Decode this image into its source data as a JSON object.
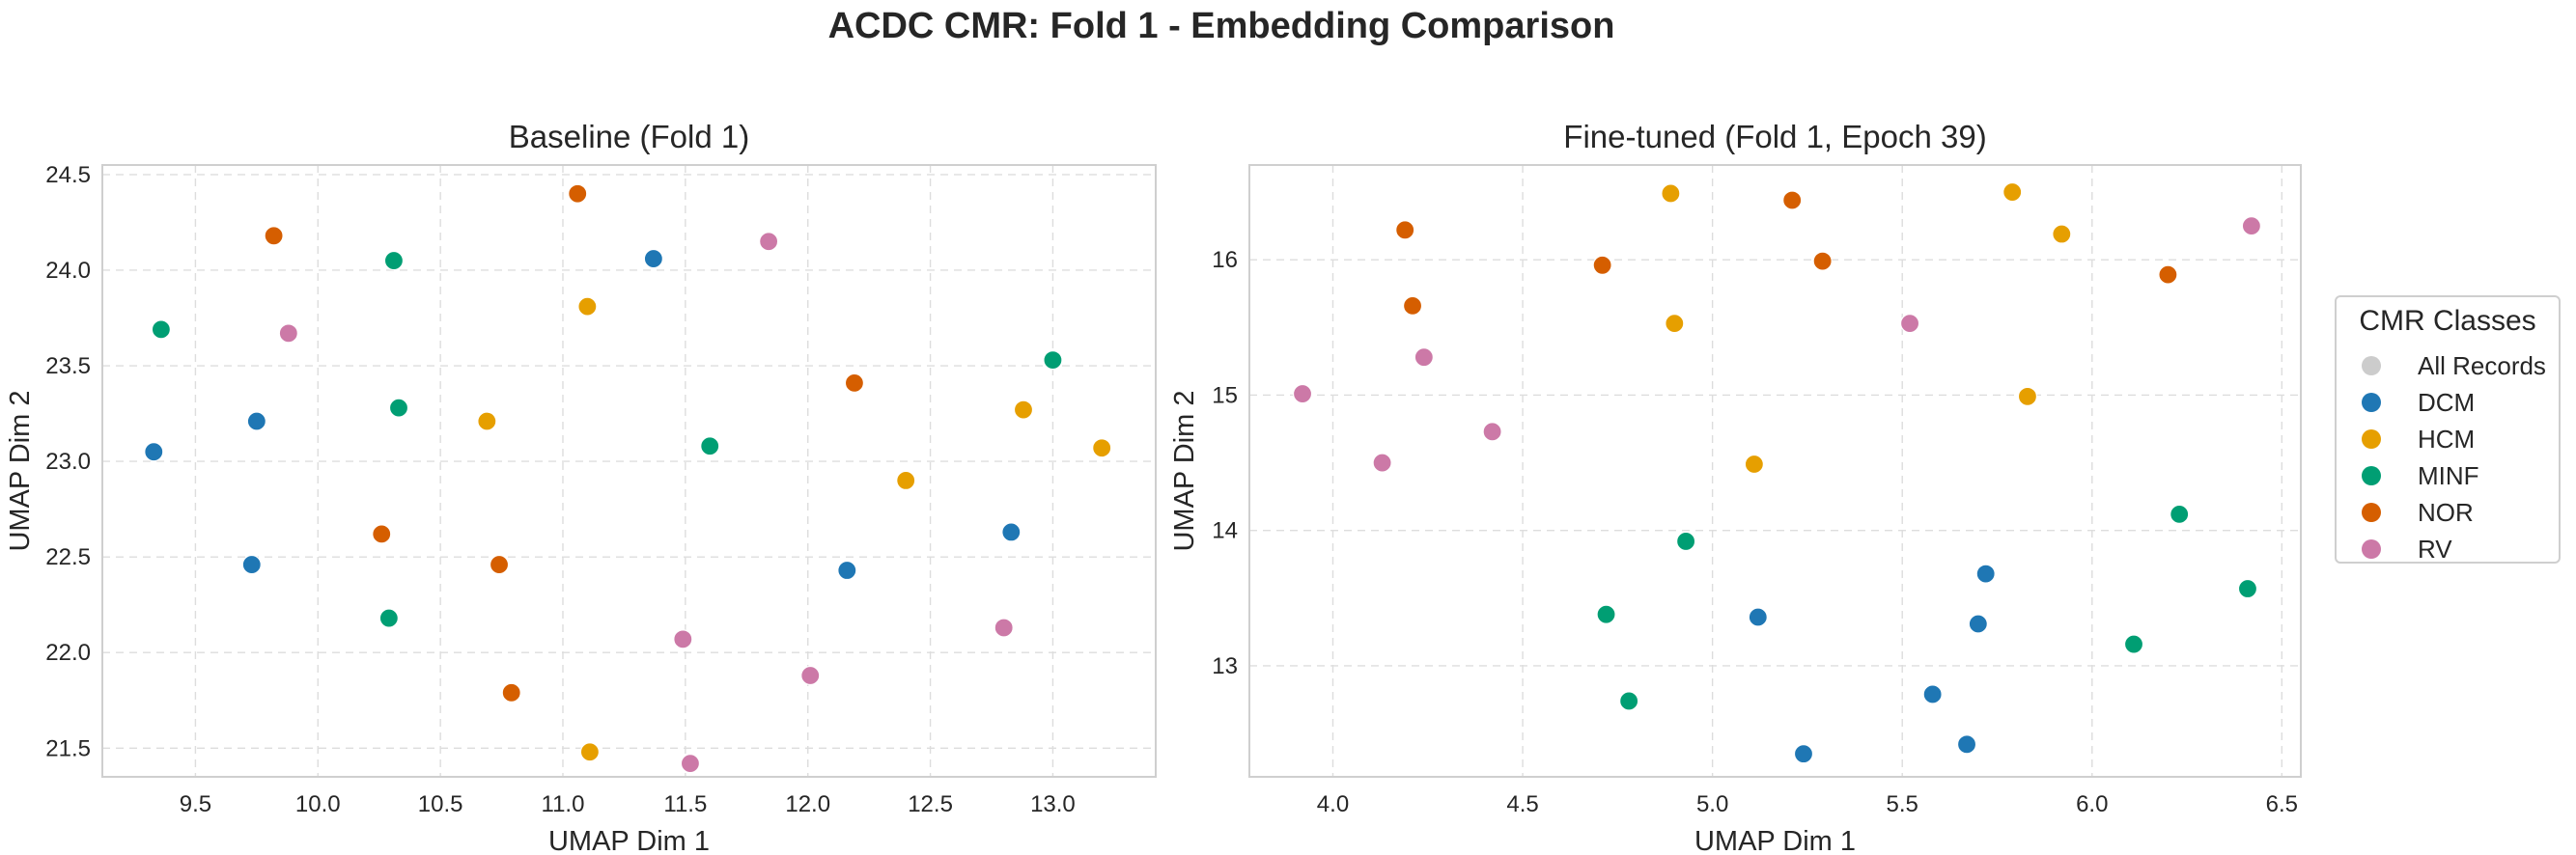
{
  "suptitle": "ACDC CMR: Fold 1 - Embedding Comparison",
  "legend": {
    "title": "CMR Classes",
    "items": [
      {
        "label": "All Records",
        "color": "#cccccc"
      },
      {
        "label": "DCM",
        "color": "#1f77b4"
      },
      {
        "label": "HCM",
        "color": "#e69f00"
      },
      {
        "label": "MINF",
        "color": "#009e73"
      },
      {
        "label": "NOR",
        "color": "#d55e00"
      },
      {
        "label": "RV",
        "color": "#cc79a7"
      }
    ]
  },
  "chart_data": [
    {
      "type": "scatter",
      "title": "Baseline (Fold 1)",
      "xlabel": "UMAP Dim 1",
      "ylabel": "UMAP Dim 2",
      "xlim": [
        9.12,
        13.42
      ],
      "ylim": [
        21.35,
        24.55
      ],
      "xticks": [
        "9.5",
        "10.0",
        "10.5",
        "11.0",
        "11.5",
        "12.0",
        "12.5",
        "13.0"
      ],
      "yticks": [
        "21.5",
        "22.0",
        "22.5",
        "23.0",
        "23.5",
        "24.0",
        "24.5"
      ],
      "grid": true,
      "series": [
        {
          "name": "DCM",
          "color": "#1f77b4",
          "points": [
            [
              9.33,
              23.05
            ],
            [
              9.75,
              23.21
            ],
            [
              9.73,
              22.46
            ],
            [
              11.37,
              24.06
            ],
            [
              12.16,
              22.43
            ],
            [
              12.83,
              22.63
            ]
          ]
        },
        {
          "name": "HCM",
          "color": "#e69f00",
          "points": [
            [
              11.1,
              23.81
            ],
            [
              10.69,
              23.21
            ],
            [
              12.4,
              22.9
            ],
            [
              12.88,
              23.27
            ],
            [
              13.2,
              23.07
            ],
            [
              11.11,
              21.48
            ]
          ]
        },
        {
          "name": "MINF",
          "color": "#009e73",
          "points": [
            [
              9.36,
              23.69
            ],
            [
              10.31,
              24.05
            ],
            [
              10.33,
              23.28
            ],
            [
              11.6,
              23.08
            ],
            [
              10.29,
              22.18
            ],
            [
              13.0,
              23.53
            ]
          ]
        },
        {
          "name": "NOR",
          "color": "#d55e00",
          "points": [
            [
              9.82,
              24.18
            ],
            [
              11.06,
              24.4
            ],
            [
              10.26,
              22.62
            ],
            [
              10.74,
              22.46
            ],
            [
              10.79,
              21.79
            ],
            [
              12.19,
              23.41
            ]
          ]
        },
        {
          "name": "RV",
          "color": "#cc79a7",
          "points": [
            [
              9.88,
              23.67
            ],
            [
              11.84,
              24.15
            ],
            [
              11.49,
              22.07
            ],
            [
              12.01,
              21.88
            ],
            [
              12.8,
              22.13
            ],
            [
              11.52,
              21.42
            ]
          ]
        }
      ]
    },
    {
      "type": "scatter",
      "title": "Fine-tuned (Fold 1, Epoch 39)",
      "xlabel": "UMAP Dim 1",
      "ylabel": "UMAP Dim 2",
      "xlim": [
        3.78,
        6.55
      ],
      "ylim": [
        12.18,
        16.7
      ],
      "xticks": [
        "4.0",
        "4.5",
        "5.0",
        "5.5",
        "6.0",
        "6.5"
      ],
      "yticks": [
        "13",
        "14",
        "15",
        "16"
      ],
      "grid": true,
      "series": [
        {
          "name": "DCM",
          "color": "#1f77b4",
          "points": [
            [
              5.72,
              13.68
            ],
            [
              5.12,
              13.36
            ],
            [
              5.7,
              13.31
            ],
            [
              5.58,
              12.79
            ],
            [
              5.24,
              12.35
            ],
            [
              5.67,
              12.42
            ]
          ]
        },
        {
          "name": "HCM",
          "color": "#e69f00",
          "points": [
            [
              4.89,
              16.49
            ],
            [
              5.79,
              16.5
            ],
            [
              5.92,
              16.19
            ],
            [
              4.9,
              15.53
            ],
            [
              5.83,
              14.99
            ],
            [
              5.11,
              14.49
            ]
          ]
        },
        {
          "name": "MINF",
          "color": "#009e73",
          "points": [
            [
              4.93,
              13.92
            ],
            [
              4.72,
              13.38
            ],
            [
              6.23,
              14.12
            ],
            [
              6.41,
              13.57
            ],
            [
              6.11,
              13.16
            ],
            [
              4.78,
              12.74
            ]
          ]
        },
        {
          "name": "NOR",
          "color": "#d55e00",
          "points": [
            [
              4.19,
              16.22
            ],
            [
              5.21,
              16.44
            ],
            [
              4.71,
              15.96
            ],
            [
              5.29,
              15.99
            ],
            [
              4.21,
              15.66
            ],
            [
              6.2,
              15.89
            ]
          ]
        },
        {
          "name": "RV",
          "color": "#cc79a7",
          "points": [
            [
              6.42,
              16.25
            ],
            [
              5.52,
              15.53
            ],
            [
              4.24,
              15.28
            ],
            [
              3.92,
              15.01
            ],
            [
              4.13,
              14.5
            ],
            [
              4.42,
              14.73
            ]
          ]
        }
      ]
    }
  ]
}
